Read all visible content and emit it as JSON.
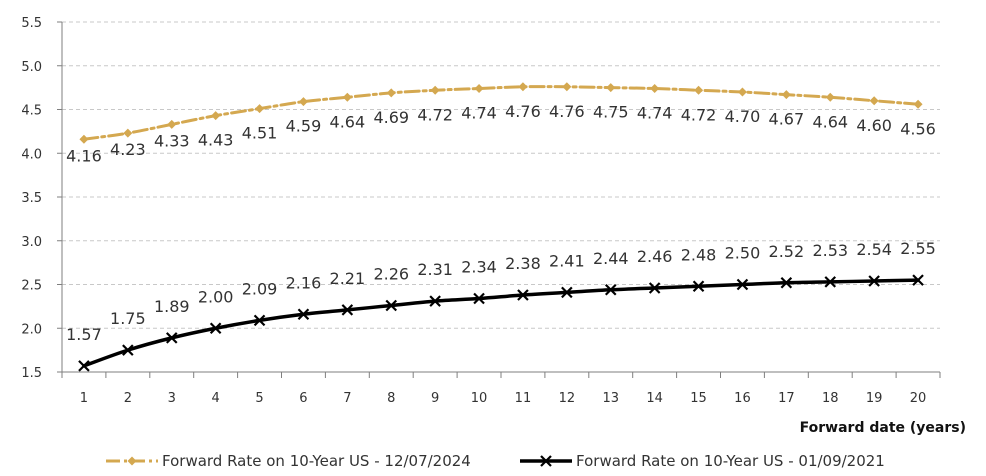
{
  "chart_data": {
    "type": "line",
    "xlabel": "Forward date (years)",
    "ylabel": "",
    "x": [
      1,
      2,
      3,
      4,
      5,
      6,
      7,
      8,
      9,
      10,
      11,
      12,
      13,
      14,
      15,
      16,
      17,
      18,
      19,
      20
    ],
    "ylim": [
      1.5,
      5.5
    ],
    "yticks": [
      "1.5",
      "2.0",
      "2.5",
      "3.0",
      "3.5",
      "4.0",
      "4.5",
      "5.0",
      "5.5"
    ],
    "grid": "horizontal dashed",
    "legend_position": "bottom",
    "series": [
      {
        "name": "Forward Rate on 10-Year US - 12/07/2024",
        "color": "#d4a850",
        "marker": "diamond",
        "line_style": "dash-dot",
        "values": [
          4.16,
          4.23,
          4.33,
          4.43,
          4.51,
          4.59,
          4.64,
          4.69,
          4.72,
          4.74,
          4.76,
          4.76,
          4.75,
          4.74,
          4.72,
          4.7,
          4.67,
          4.64,
          4.6,
          4.56
        ],
        "labels": [
          "4.16",
          "4.23",
          "4.33",
          "4.43",
          "4.51",
          "4.59",
          "4.64",
          "4.69",
          "4.72",
          "4.74",
          "4.76",
          "4.76",
          "4.75",
          "4.74",
          "4.72",
          "4.70",
          "4.67",
          "4.64",
          "4.60",
          "4.56"
        ]
      },
      {
        "name": "Forward Rate on 10-Year US - 01/09/2021",
        "color": "#000000",
        "marker": "x",
        "line_style": "solid",
        "values": [
          1.57,
          1.75,
          1.89,
          2.0,
          2.09,
          2.16,
          2.21,
          2.26,
          2.31,
          2.34,
          2.38,
          2.41,
          2.44,
          2.46,
          2.48,
          2.5,
          2.52,
          2.53,
          2.54,
          2.55
        ],
        "labels": [
          "1.57",
          "1.75",
          "1.89",
          "2.00",
          "2.09",
          "2.16",
          "2.21",
          "2.26",
          "2.31",
          "2.34",
          "2.38",
          "2.41",
          "2.44",
          "2.46",
          "2.48",
          "2.50",
          "2.52",
          "2.53",
          "2.54",
          "2.55"
        ]
      }
    ]
  }
}
